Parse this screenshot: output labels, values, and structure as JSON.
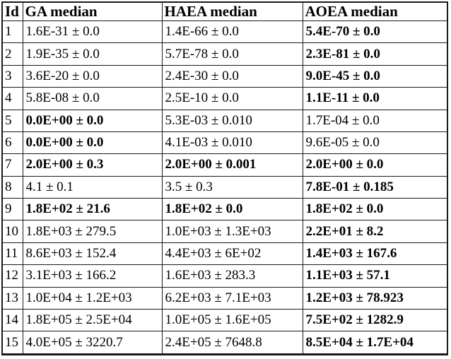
{
  "colors": {
    "background": "#ffffff",
    "border": "#1a1a1a",
    "text": "#000000"
  },
  "table": {
    "columns": [
      {
        "label": "Id"
      },
      {
        "label": "GA median"
      },
      {
        "label": "HAEA median"
      },
      {
        "label": "AOEA median"
      }
    ],
    "rows": [
      {
        "id": "1",
        "cells": [
          {
            "text": "1.6E-31 ± 0.0",
            "bold": false
          },
          {
            "text": "1.4E-66 ± 0.0",
            "bold": false
          },
          {
            "text": "5.4E-70 ± 0.0",
            "bold": true
          }
        ]
      },
      {
        "id": "2",
        "cells": [
          {
            "text": "1.9E-35 ± 0.0",
            "bold": false
          },
          {
            "text": "5.7E-78 ± 0.0",
            "bold": false
          },
          {
            "text": "2.3E-81 ± 0.0",
            "bold": true
          }
        ]
      },
      {
        "id": "3",
        "cells": [
          {
            "text": "3.6E-20 ± 0.0",
            "bold": false
          },
          {
            "text": "2.4E-30 ± 0.0",
            "bold": false
          },
          {
            "text": "9.0E-45 ± 0.0",
            "bold": true
          }
        ]
      },
      {
        "id": "4",
        "cells": [
          {
            "text": "5.8E-08 ± 0.0",
            "bold": false
          },
          {
            "text": "2.5E-10 ± 0.0",
            "bold": false
          },
          {
            "text": "1.1E-11 ± 0.0",
            "bold": true
          }
        ]
      },
      {
        "id": "5",
        "cells": [
          {
            "text": "0.0E+00 ± 0.0",
            "bold": true
          },
          {
            "text": "5.3E-03 ± 0.010",
            "bold": false
          },
          {
            "text": "1.7E-04 ± 0.0",
            "bold": false
          }
        ]
      },
      {
        "id": "6",
        "cells": [
          {
            "text": "0.0E+00 ± 0.0",
            "bold": true
          },
          {
            "text": "4.1E-03 ± 0.010",
            "bold": false
          },
          {
            "text": "9.6E-05 ± 0.0",
            "bold": false
          }
        ]
      },
      {
        "id": "7",
        "cells": [
          {
            "text": "2.0E+00 ± 0.3",
            "bold": true
          },
          {
            "text": "2.0E+00 ± 0.001",
            "bold": true
          },
          {
            "text": "2.0E+00 ± 0.0",
            "bold": true
          }
        ]
      },
      {
        "id": "8",
        "cells": [
          {
            "text": "4.1 ± 0.1",
            "bold": false
          },
          {
            "text": "3.5 ± 0.3",
            "bold": false
          },
          {
            "text": "7.8E-01 ± 0.185",
            "bold": true
          }
        ]
      },
      {
        "id": "9",
        "cells": [
          {
            "text": "1.8E+02 ± 21.6",
            "bold": true
          },
          {
            "text": "1.8E+02 ± 0.0",
            "bold": true
          },
          {
            "text": "1.8E+02 ± 0.0",
            "bold": true
          }
        ]
      },
      {
        "id": "10",
        "cells": [
          {
            "text": "1.8E+03 ± 279.5",
            "bold": false
          },
          {
            "text": "1.0E+03 ± 1.3E+03",
            "bold": false
          },
          {
            "text": "2.2E+01 ± 8.2",
            "bold": true
          }
        ]
      },
      {
        "id": "11",
        "cells": [
          {
            "text": "8.6E+03 ± 152.4",
            "bold": false
          },
          {
            "text": "4.4E+03 ± 6E+02",
            "bold": false
          },
          {
            "text": "1.4E+03 ± 167.6",
            "bold": true
          }
        ]
      },
      {
        "id": "12",
        "cells": [
          {
            "text": "3.1E+03 ± 166.2",
            "bold": false
          },
          {
            "text": "1.6E+03 ± 283.3",
            "bold": false
          },
          {
            "text": "1.1E+03 ± 57.1",
            "bold": true
          }
        ]
      },
      {
        "id": "13",
        "cells": [
          {
            "text": "1.0E+04 ± 1.2E+03",
            "bold": false
          },
          {
            "text": "6.2E+03 ± 7.1E+03",
            "bold": false
          },
          {
            "text": "1.2E+03 ± 78.923",
            "bold": true
          }
        ]
      },
      {
        "id": "14",
        "cells": [
          {
            "text": "1.8E+05 ± 2.5E+04",
            "bold": false
          },
          {
            "text": "1.0E+05 ± 1.6E+05",
            "bold": false
          },
          {
            "text": "7.5E+02 ± 1282.9",
            "bold": true
          }
        ]
      },
      {
        "id": "15",
        "cells": [
          {
            "text": "4.0E+05 ± 3220.7",
            "bold": false
          },
          {
            "text": "2.4E+05 ± 7648.8",
            "bold": false
          },
          {
            "text": "8.5E+04 ± 1.7E+04",
            "bold": true
          }
        ]
      }
    ]
  }
}
